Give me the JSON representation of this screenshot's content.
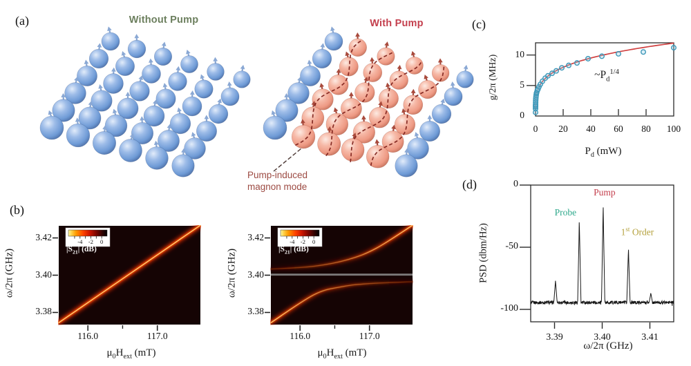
{
  "figure": {
    "panel_labels": {
      "a": "(a)",
      "b": "(b)",
      "c": "(c)",
      "d": "(d)"
    }
  },
  "panel_a": {
    "without_pump_title": "Without Pump",
    "without_pump_color": "#6c7f5e",
    "with_pump_title": "With Pump",
    "with_pump_color": "#c4404e",
    "annotation_lines": [
      "Pump-induced",
      "magnon mode"
    ],
    "annotation_color": "#9c4a42",
    "lattice": {
      "rows": 6,
      "cols": 6,
      "normal_sphere_color": "#7ba6de",
      "pumped_sphere_color": "#f4a593",
      "pumped_columns": [
        1,
        2,
        3,
        4
      ],
      "wave_color": "#7e1f1a",
      "wave_style": "dashed"
    }
  },
  "chart_data": [
    {
      "id": "b-left",
      "type": "heatmap",
      "panel": "(b)",
      "description": "Microwave transmission vs field, without pump: single magnon mode diagonal",
      "ylabel": "ω/2π  (GHz)",
      "xlabel_parts": [
        [
          "μ",
          ""
        ],
        [
          "0",
          "sub"
        ],
        [
          "H",
          ""
        ],
        [
          "ext",
          "sub"
        ],
        [
          " (mT)",
          ""
        ]
      ],
      "xlim": [
        115.58,
        117.62
      ],
      "ylim": [
        3.3735,
        3.4265
      ],
      "x_ticks": [
        "116.0",
        "117.0"
      ],
      "x_minor_ticks": [
        116.5
      ],
      "y_ticks": [
        "3.38",
        "3.40",
        "3.42"
      ],
      "colorbar": {
        "label_parts": [
          [
            "|S",
            ""
          ],
          [
            "21",
            "sub"
          ],
          [
            "| (dB)",
            ""
          ]
        ],
        "ticks": [
          "-4",
          "-2",
          "0"
        ]
      },
      "features": [
        {
          "kind": "mode-line",
          "points": [
            [
              115.58,
              3.3745
            ],
            [
              117.62,
              3.4268
            ]
          ]
        }
      ]
    },
    {
      "id": "b-right",
      "type": "heatmap",
      "panel": "(b)",
      "description": "With pump: avoided crossing of magnon mode with pump-induced mode at 3.400 GHz",
      "ylabel": "ω/2π  (GHz)",
      "xlabel_parts": [
        [
          "μ",
          ""
        ],
        [
          "0",
          "sub"
        ],
        [
          "H",
          ""
        ],
        [
          "ext",
          "sub"
        ],
        [
          " (mT)",
          ""
        ]
      ],
      "xlim": [
        115.58,
        117.62
      ],
      "ylim": [
        3.3735,
        3.4265
      ],
      "x_ticks": [
        "116.0",
        "117.0"
      ],
      "x_minor_ticks": [
        116.5
      ],
      "y_ticks": [
        "3.38",
        "3.40",
        "3.42"
      ],
      "colorbar": {
        "label_parts": [
          [
            "|S",
            ""
          ],
          [
            "21",
            "sub"
          ],
          [
            "| (dB)",
            ""
          ]
        ],
        "ticks": [
          "-4",
          "-2",
          "0"
        ]
      },
      "features": [
        {
          "kind": "mode-line",
          "fade": "right",
          "points": [
            [
              115.58,
              3.3745
            ],
            [
              116.2,
              3.3895
            ],
            [
              116.6,
              3.3938
            ],
            [
              117.0,
              3.3955
            ],
            [
              117.62,
              3.3965
            ]
          ]
        },
        {
          "kind": "mode-line",
          "fade": "left",
          "points": [
            [
              115.58,
              3.4033
            ],
            [
              116.2,
              3.4048
            ],
            [
              116.7,
              3.4085
            ],
            [
              117.1,
              3.4145
            ],
            [
              117.62,
              3.4268
            ]
          ]
        },
        {
          "kind": "pump-line",
          "y": 3.4003,
          "color": "#8f8f8f"
        }
      ]
    },
    {
      "id": "c",
      "type": "scatter",
      "panel": "(c)",
      "description": "Coupling strength vs drive power, fit ~ Pd^(1/4)",
      "ylabel": "g/2π (MHz)",
      "xlabel_parts": [
        [
          "P",
          ""
        ],
        [
          "d",
          "sub"
        ],
        [
          " (mW)",
          ""
        ]
      ],
      "annotation_parts": [
        [
          "~P",
          ""
        ],
        [
          "d",
          "sub"
        ],
        [
          "1/4",
          "sup"
        ]
      ],
      "xlim": [
        0,
        100
      ],
      "ylim": [
        0,
        12
      ],
      "x_ticks": [
        "0",
        "20",
        "40",
        "60",
        "80",
        "100"
      ],
      "y_ticks": [
        "0",
        "5",
        "10"
      ],
      "marker_color": "#3c97b8",
      "fit": {
        "type": "power",
        "coefficient": 3.78,
        "exponent": 0.25,
        "color": "#d04040"
      },
      "points": [
        [
          0.003,
          0.6
        ],
        [
          0.01,
          1.2
        ],
        [
          0.02,
          1.5
        ],
        [
          0.03,
          1.7
        ],
        [
          0.05,
          1.9
        ],
        [
          0.08,
          2.2
        ],
        [
          0.12,
          2.5
        ],
        [
          0.2,
          2.8
        ],
        [
          0.3,
          3.1
        ],
        [
          0.45,
          3.4
        ],
        [
          0.65,
          3.7
        ],
        [
          0.9,
          3.9
        ],
        [
          1.3,
          4.2
        ],
        [
          1.8,
          4.4
        ],
        [
          2.5,
          4.8
        ],
        [
          3.5,
          5.2
        ],
        [
          5,
          5.7
        ],
        [
          7,
          6.2
        ],
        [
          9,
          6.6
        ],
        [
          12,
          7.0
        ],
        [
          15,
          7.4
        ],
        [
          19,
          7.9
        ],
        [
          24,
          8.3
        ],
        [
          30,
          8.7
        ],
        [
          38,
          9.4
        ],
        [
          48,
          9.8
        ],
        [
          60,
          10.2
        ],
        [
          78,
          10.5
        ],
        [
          100,
          11.2
        ]
      ]
    },
    {
      "id": "d",
      "type": "spectrum",
      "panel": "(d)",
      "description": "Power spectral density showing probe, pump and first-order sideband peaks",
      "ylabel": "PSD (dbm/Hz)",
      "xlabel": "ω/2π  (GHz)",
      "xlim": [
        3.385,
        3.415
      ],
      "ylim": [
        -110,
        0
      ],
      "x_ticks": [
        "3.39",
        "3.40",
        "3.41"
      ],
      "y_ticks": [
        "0",
        "-50",
        "-100"
      ],
      "baseline_dbm": -94.5,
      "trace_color": "#161616",
      "peaks": [
        {
          "freq": 3.3902,
          "psd": -77,
          "label": ""
        },
        {
          "freq": 3.3952,
          "psd": -30,
          "label": "Probe",
          "label_color": "#2fa98c"
        },
        {
          "freq": 3.4002,
          "psd": -18,
          "label": "Pump",
          "label_color": "#c4404e"
        },
        {
          "freq": 3.4055,
          "psd": -52,
          "label": "1st Order",
          "label_parts": [
            [
              "1",
              ""
            ],
            [
              "st",
              "sup"
            ],
            [
              " Order",
              ""
            ]
          ],
          "label_color": "#b5a23e"
        },
        {
          "freq": 3.4102,
          "psd": -87,
          "label": ""
        }
      ]
    }
  ]
}
